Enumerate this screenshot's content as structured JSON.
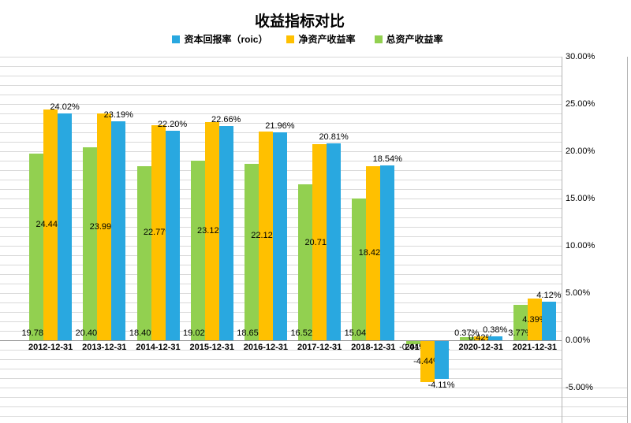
{
  "chart": {
    "title": "收益指标对比",
    "legend": [
      {
        "label": "资本回报率（roic）",
        "color": "#29A8E0"
      },
      {
        "label": "净资产收益率",
        "color": "#FFC000"
      },
      {
        "label": "总资产收益率",
        "color": "#92D050"
      }
    ]
  },
  "chart_data": {
    "type": "bar",
    "title": "收益指标对比",
    "categories": [
      "2012-12-31",
      "2013-12-31",
      "2014-12-31",
      "2015-12-31",
      "2016-12-31",
      "2017-12-31",
      "2018-12-31",
      "2019-12-31",
      "2020-12-31",
      "2021-12-31"
    ],
    "series": [
      {
        "name": "总资产收益率",
        "color": "#92D050",
        "label_position": "inside-base",
        "values": [
          19.78,
          20.4,
          18.4,
          19.02,
          18.65,
          16.52,
          15.04,
          -0.44,
          0.37,
          3.77
        ]
      },
      {
        "name": "净资产收益率",
        "color": "#FFC000",
        "label_position": "center",
        "values": [
          24.44,
          23.99,
          22.77,
          23.12,
          22.12,
          20.71,
          18.42,
          -4.44,
          0.42,
          4.39
        ]
      },
      {
        "name": "资本回报率（roic）",
        "color": "#29A8E0",
        "label_position": "outside-end",
        "values": [
          24.02,
          23.19,
          22.2,
          22.66,
          21.96,
          20.81,
          18.54,
          -4.11,
          0.38,
          4.12
        ]
      }
    ],
    "y_axis": {
      "min": -5,
      "max": 30,
      "major_step": 5,
      "minor_step": 1,
      "tick_labels": [
        "30.00%",
        "25.00%",
        "20.00%",
        "15.00%",
        "10.00%",
        "5.00%",
        "0.00%",
        "-5.00%"
      ]
    },
    "legend_position": "top",
    "grid": true,
    "value_suffix": "%"
  }
}
